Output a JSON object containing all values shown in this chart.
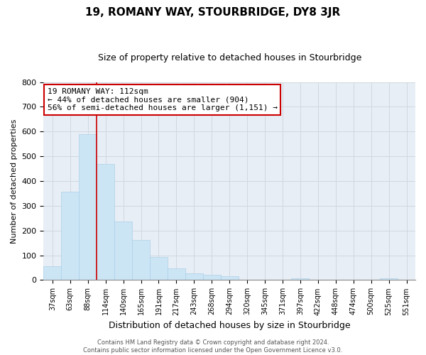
{
  "title": "19, ROMANY WAY, STOURBRIDGE, DY8 3JR",
  "subtitle": "Size of property relative to detached houses in Stourbridge",
  "xlabel": "Distribution of detached houses by size in Stourbridge",
  "ylabel": "Number of detached properties",
  "bin_labels": [
    "37sqm",
    "63sqm",
    "88sqm",
    "114sqm",
    "140sqm",
    "165sqm",
    "191sqm",
    "217sqm",
    "243sqm",
    "268sqm",
    "294sqm",
    "320sqm",
    "345sqm",
    "371sqm",
    "397sqm",
    "422sqm",
    "448sqm",
    "474sqm",
    "500sqm",
    "525sqm",
    "551sqm"
  ],
  "bar_heights": [
    57,
    356,
    588,
    469,
    236,
    163,
    92,
    48,
    26,
    22,
    16,
    0,
    0,
    0,
    8,
    0,
    0,
    0,
    0,
    8,
    0
  ],
  "bar_color": "#cce5f5",
  "bar_edge_color": "#aad0e8",
  "vline_color": "#cc0000",
  "vline_x": 2.5,
  "ylim": [
    0,
    800
  ],
  "yticks": [
    0,
    100,
    200,
    300,
    400,
    500,
    600,
    700,
    800
  ],
  "annotation_title": "19 ROMANY WAY: 112sqm",
  "annotation_line1": "← 44% of detached houses are smaller (904)",
  "annotation_line2": "56% of semi-detached houses are larger (1,151) →",
  "annotation_box_color": "#ffffff",
  "annotation_box_edge": "#cc0000",
  "footer_line1": "Contains HM Land Registry data © Crown copyright and database right 2024.",
  "footer_line2": "Contains public sector information licensed under the Open Government Licence v3.0.",
  "grid_color": "#d0d8e0",
  "background_color": "#e8eef5",
  "title_fontsize": 11,
  "subtitle_fontsize": 9,
  "ylabel_fontsize": 8,
  "xlabel_fontsize": 9,
  "tick_fontsize": 8,
  "xtick_fontsize": 7,
  "annotation_fontsize": 8,
  "footer_fontsize": 6
}
